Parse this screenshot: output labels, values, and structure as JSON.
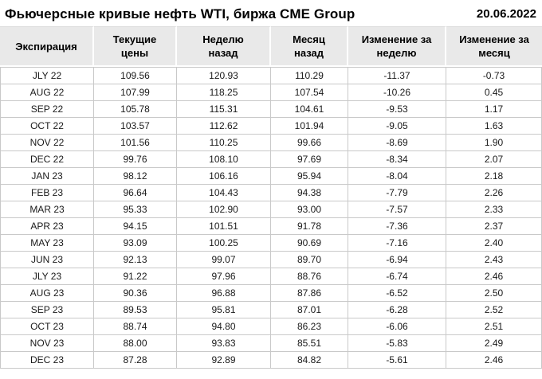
{
  "header": {
    "title": "Фьючерсные кривые нефть WTI, биржа CME Group",
    "date": "20.06.2022"
  },
  "colors": {
    "negative": "#c00000",
    "positive": "#1e7b1e",
    "header_bg": "#e9e9e9",
    "grid_border": "#c9c9c9",
    "text": "#1a1a1a"
  },
  "chart_data": {
    "type": "table",
    "title": "Фьючерсные кривые нефть WTI, биржа CME Group",
    "date": "20.06.2022",
    "column_ids": [
      "expiration",
      "current_price",
      "week_ago",
      "month_ago",
      "week_change",
      "month_change"
    ],
    "columns": [
      {
        "id": "expiration",
        "label": "Экспирация",
        "lines": [
          "Экспирация"
        ]
      },
      {
        "id": "current_price",
        "label": "Текущие цены",
        "lines": [
          "Текущие",
          "цены"
        ]
      },
      {
        "id": "week_ago",
        "label": "Неделю назад",
        "lines": [
          "Неделю",
          "назад"
        ]
      },
      {
        "id": "month_ago",
        "label": "Месяц назад",
        "lines": [
          "Месяц",
          "назад"
        ]
      },
      {
        "id": "week_change",
        "label": "Изменение за неделю",
        "lines": [
          "Изменение за",
          "неделю"
        ]
      },
      {
        "id": "month_change",
        "label": "Изменение за месяц",
        "lines": [
          "Изменение за",
          "месяц"
        ]
      }
    ],
    "rows": [
      [
        "JLY 22",
        "109.56",
        "120.93",
        "110.29",
        "-11.37",
        "-0.73"
      ],
      [
        "AUG 22",
        "107.99",
        "118.25",
        "107.54",
        "-10.26",
        "0.45"
      ],
      [
        "SEP 22",
        "105.78",
        "115.31",
        "104.61",
        "-9.53",
        "1.17"
      ],
      [
        "OCT 22",
        "103.57",
        "112.62",
        "101.94",
        "-9.05",
        "1.63"
      ],
      [
        "NOV 22",
        "101.56",
        "110.25",
        "99.66",
        "-8.69",
        "1.90"
      ],
      [
        "DEC 22",
        "99.76",
        "108.10",
        "97.69",
        "-8.34",
        "2.07"
      ],
      [
        "JAN 23",
        "98.12",
        "106.16",
        "95.94",
        "-8.04",
        "2.18"
      ],
      [
        "FEB 23",
        "96.64",
        "104.43",
        "94.38",
        "-7.79",
        "2.26"
      ],
      [
        "MAR 23",
        "95.33",
        "102.90",
        "93.00",
        "-7.57",
        "2.33"
      ],
      [
        "APR 23",
        "94.15",
        "101.51",
        "91.78",
        "-7.36",
        "2.37"
      ],
      [
        "MAY 23",
        "93.09",
        "100.25",
        "90.69",
        "-7.16",
        "2.40"
      ],
      [
        "JUN 23",
        "92.13",
        "99.07",
        "89.70",
        "-6.94",
        "2.43"
      ],
      [
        "JLY 23",
        "91.22",
        "97.96",
        "88.76",
        "-6.74",
        "2.46"
      ],
      [
        "AUG 23",
        "90.36",
        "96.88",
        "87.86",
        "-6.52",
        "2.50"
      ],
      [
        "SEP 23",
        "89.53",
        "95.81",
        "87.01",
        "-6.28",
        "2.52"
      ],
      [
        "OCT 23",
        "88.74",
        "94.80",
        "86.23",
        "-6.06",
        "2.51"
      ],
      [
        "NOV 23",
        "88.00",
        "93.83",
        "85.51",
        "-5.83",
        "2.49"
      ],
      [
        "DEC 23",
        "87.28",
        "92.89",
        "84.82",
        "-5.61",
        "2.46"
      ]
    ]
  }
}
